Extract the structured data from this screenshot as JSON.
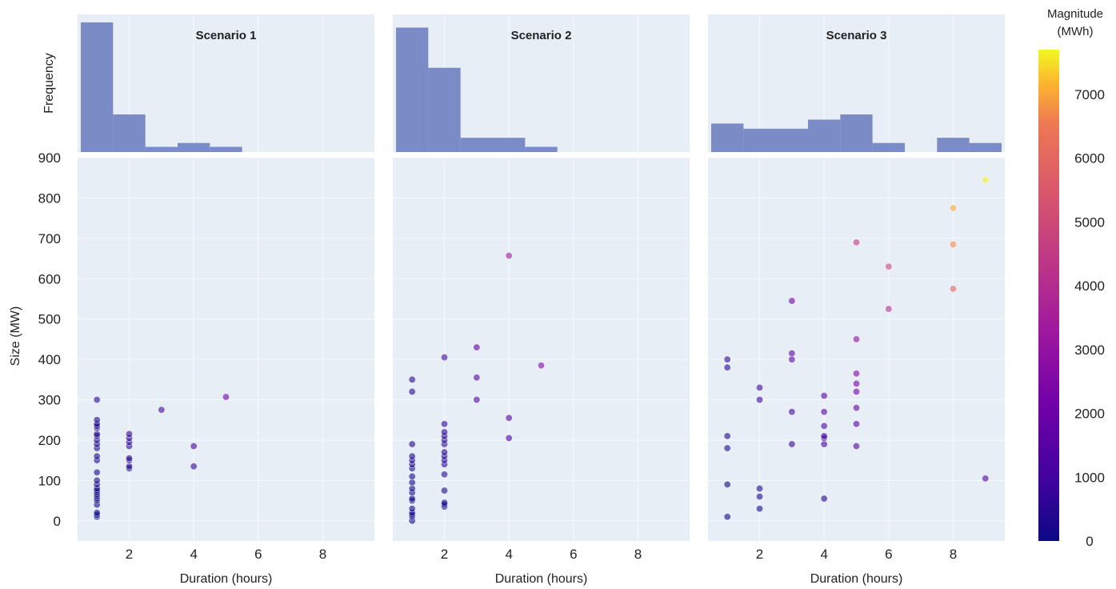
{
  "chart_data": {
    "type": "scatter",
    "xlabel": "Duration (hours)",
    "ylabel": "Size (MW)",
    "hist_ylabel": "Frequency",
    "xlim": [
      0.4,
      9.6
    ],
    "ylim": [
      -50,
      900
    ],
    "x_ticks": [
      2,
      4,
      6,
      8
    ],
    "y_ticks": [
      0,
      100,
      200,
      300,
      400,
      500,
      600,
      700,
      800,
      900
    ],
    "colorbar": {
      "title_line1": "Magnitude",
      "title_line2": "(MWh)",
      "range": [
        0,
        7700
      ],
      "ticks": [
        0,
        1000,
        2000,
        3000,
        4000,
        5000,
        6000,
        7000
      ],
      "colormap": "plasma"
    },
    "colors": {
      "panel_background": "#e8eef6",
      "hist_bar": "#7b8bc5",
      "grid": "#f6f9fd"
    },
    "panels": [
      {
        "title": "Scenario 1",
        "hist": [
          {
            "x0": 0.5,
            "x1": 1.5,
            "h": 1.0
          },
          {
            "x0": 1.5,
            "x1": 2.5,
            "h": 0.29
          },
          {
            "x0": 2.5,
            "x1": 3.5,
            "h": 0.04
          },
          {
            "x0": 3.5,
            "x1": 4.5,
            "h": 0.07
          },
          {
            "x0": 4.5,
            "x1": 5.5,
            "h": 0.04
          }
        ],
        "points": [
          [
            1,
            10
          ],
          [
            1,
            15
          ],
          [
            1,
            20
          ],
          [
            1,
            40
          ],
          [
            1,
            50
          ],
          [
            1,
            55
          ],
          [
            1,
            60
          ],
          [
            1,
            65
          ],
          [
            1,
            70
          ],
          [
            1,
            75
          ],
          [
            1,
            80
          ],
          [
            1,
            90
          ],
          [
            1,
            100
          ],
          [
            1,
            120
          ],
          [
            1,
            150
          ],
          [
            1,
            160
          ],
          [
            1,
            180
          ],
          [
            1,
            190
          ],
          [
            1,
            200
          ],
          [
            1,
            210
          ],
          [
            1,
            215
          ],
          [
            1,
            230
          ],
          [
            1,
            235
          ],
          [
            1,
            240
          ],
          [
            1,
            250
          ],
          [
            1,
            300
          ],
          [
            2,
            130
          ],
          [
            2,
            135
          ],
          [
            2,
            150
          ],
          [
            2,
            155
          ],
          [
            2,
            185
          ],
          [
            2,
            195
          ],
          [
            2,
            205
          ],
          [
            2,
            215
          ],
          [
            3,
            275
          ],
          [
            4,
            135
          ],
          [
            4,
            185
          ],
          [
            5,
            307
          ]
        ]
      },
      {
        "title": "Scenario 2",
        "hist": [
          {
            "x0": 0.5,
            "x1": 1.5,
            "h": 0.96
          },
          {
            "x0": 1.5,
            "x1": 2.5,
            "h": 0.65
          },
          {
            "x0": 2.5,
            "x1": 4.5,
            "h": 0.11
          },
          {
            "x0": 4.5,
            "x1": 5.5,
            "h": 0.04
          }
        ],
        "points": [
          [
            1,
            0
          ],
          [
            1,
            10
          ],
          [
            1,
            15
          ],
          [
            1,
            20
          ],
          [
            1,
            30
          ],
          [
            1,
            50
          ],
          [
            1,
            55
          ],
          [
            1,
            70
          ],
          [
            1,
            80
          ],
          [
            1,
            95
          ],
          [
            1,
            110
          ],
          [
            1,
            130
          ],
          [
            1,
            140
          ],
          [
            1,
            150
          ],
          [
            1,
            160
          ],
          [
            1,
            190
          ],
          [
            1,
            320
          ],
          [
            1,
            350
          ],
          [
            2,
            35
          ],
          [
            2,
            40
          ],
          [
            2,
            45
          ],
          [
            2,
            75
          ],
          [
            2,
            115
          ],
          [
            2,
            140
          ],
          [
            2,
            150
          ],
          [
            2,
            160
          ],
          [
            2,
            170
          ],
          [
            2,
            190
          ],
          [
            2,
            200
          ],
          [
            2,
            210
          ],
          [
            2,
            220
          ],
          [
            2,
            240
          ],
          [
            2,
            405
          ],
          [
            3,
            300
          ],
          [
            3,
            355
          ],
          [
            3,
            430
          ],
          [
            4,
            205
          ],
          [
            4,
            255
          ],
          [
            4,
            657
          ],
          [
            5,
            385
          ]
        ]
      },
      {
        "title": "Scenario 3",
        "hist": [
          {
            "x0": 0.5,
            "x1": 1.5,
            "h": 0.22
          },
          {
            "x0": 1.5,
            "x1": 3.5,
            "h": 0.18
          },
          {
            "x0": 3.5,
            "x1": 4.5,
            "h": 0.25
          },
          {
            "x0": 4.5,
            "x1": 5.5,
            "h": 0.29
          },
          {
            "x0": 5.5,
            "x1": 6.5,
            "h": 0.07
          },
          {
            "x0": 7.5,
            "x1": 8.5,
            "h": 0.11
          },
          {
            "x0": 8.5,
            "x1": 9.5,
            "h": 0.07
          }
        ],
        "points": [
          [
            1,
            10
          ],
          [
            1,
            90
          ],
          [
            1,
            180
          ],
          [
            1,
            210
          ],
          [
            1,
            380
          ],
          [
            1,
            400
          ],
          [
            2,
            30
          ],
          [
            2,
            60
          ],
          [
            2,
            80
          ],
          [
            2,
            300
          ],
          [
            2,
            330
          ],
          [
            3,
            190
          ],
          [
            3,
            270
          ],
          [
            3,
            400
          ],
          [
            3,
            415
          ],
          [
            3,
            545
          ],
          [
            4,
            55
          ],
          [
            4,
            190
          ],
          [
            4,
            205
          ],
          [
            4,
            210
          ],
          [
            4,
            235
          ],
          [
            4,
            270
          ],
          [
            4,
            310
          ],
          [
            5,
            185
          ],
          [
            5,
            240
          ],
          [
            5,
            280
          ],
          [
            5,
            320
          ],
          [
            5,
            340
          ],
          [
            5,
            365
          ],
          [
            5,
            450
          ],
          [
            5,
            690
          ],
          [
            6,
            525
          ],
          [
            6,
            630
          ],
          [
            8,
            575
          ],
          [
            8,
            685
          ],
          [
            8,
            775
          ],
          [
            9,
            105
          ],
          [
            9,
            845
          ]
        ]
      }
    ]
  }
}
